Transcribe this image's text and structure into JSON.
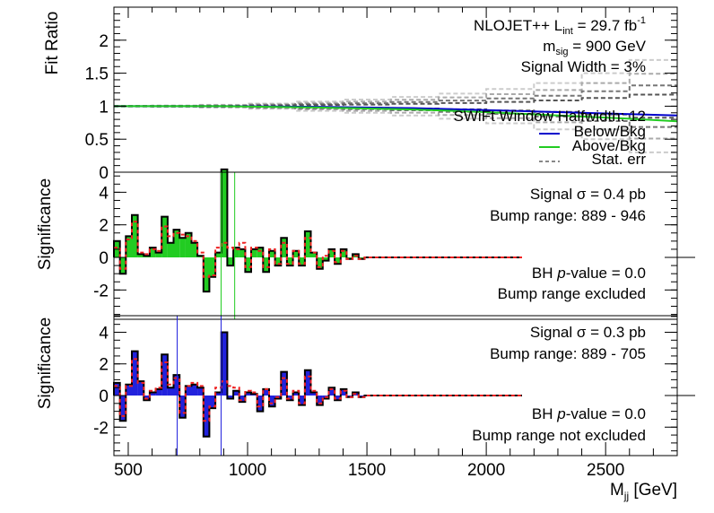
{
  "figure": {
    "x_axis_label_main": "M",
    "x_axis_label_sub": "jj",
    "x_axis_label_unit": " [GeV]"
  },
  "chart_data": [
    {
      "type": "line",
      "panel": "fit-ratio",
      "ylabel": "Fit Ratio",
      "xlim": [
        440,
        2800
      ],
      "ylim": [
        0,
        2.5
      ],
      "x_ticks": [
        "500",
        "1000",
        "1500",
        "2000",
        "2500"
      ],
      "y_ticks": [
        "0",
        "0.5",
        "1",
        "1.5",
        "2"
      ],
      "annotations": {
        "generator": "NLOJET++",
        "lumi_prefix": "L",
        "lumi_sub": "int",
        "lumi_value": " = 29.7 fb",
        "lumi_sup": "-1",
        "mass_prefix": "m",
        "mass_sub": "sig",
        "mass_value": " = 900 GeV",
        "signal_width": "Signal Width = 3%",
        "window": "SWiFt Window Halfwidth: 12"
      },
      "legend": [
        {
          "label": "Below/Bkg",
          "color": "#0000cc"
        },
        {
          "label": "Above/Bkg",
          "color": "#22cc22"
        },
        {
          "label": "Stat. err",
          "color": "#888888"
        }
      ],
      "series": [
        {
          "name": "Below/Bkg",
          "x": [
            440,
            900,
            1300,
            1700,
            2000,
            2300,
            2600,
            2800
          ],
          "y": [
            1.0,
            1.0,
            0.99,
            0.97,
            0.94,
            0.91,
            0.88,
            0.86
          ]
        },
        {
          "name": "Above/Bkg",
          "x": [
            440,
            900,
            1300,
            1700,
            2000,
            2300,
            2600,
            2800
          ],
          "y": [
            1.0,
            1.0,
            0.98,
            0.95,
            0.91,
            0.86,
            0.81,
            0.77
          ]
        }
      ],
      "stat_err": {
        "x": [
          440,
          600,
          800,
          1000,
          1200,
          1400,
          1600,
          1800,
          2000,
          2200,
          2400,
          2600,
          2800
        ],
        "half_width": [
          0.005,
          0.01,
          0.02,
          0.04,
          0.07,
          0.1,
          0.14,
          0.19,
          0.26,
          0.35,
          0.5,
          0.7,
          1.0
        ]
      }
    },
    {
      "type": "bar",
      "panel": "significance-above",
      "ylabel": "Significance",
      "xlim": [
        440,
        2800
      ],
      "ylim": [
        -3.8,
        5.5
      ],
      "y_ticks": [
        "4",
        "2",
        "0",
        "-2"
      ],
      "fill_color": "#22cc22",
      "annotations": {
        "signal_xsec": "Signal σ = 0.4 pb",
        "bump_range": "Bump range: 889 - 946",
        "bh_prefix": "BH ",
        "bh_italic": "p",
        "bh_suffix": "-value = 0.0",
        "bump_status": "Bump range excluded"
      },
      "bump_lines": [
        889,
        946
      ],
      "bin_edges": [
        440,
        465,
        490,
        515,
        540,
        565,
        590,
        615,
        640,
        665,
        690,
        715,
        740,
        765,
        790,
        815,
        840,
        865,
        890,
        915,
        940,
        965,
        990,
        1015,
        1040,
        1065,
        1090,
        1115,
        1140,
        1165,
        1190,
        1215,
        1240,
        1265,
        1290,
        1315,
        1340,
        1365,
        1390,
        1415,
        1440,
        1465,
        1490,
        1515,
        2150
      ],
      "values": [
        1.0,
        -1.0,
        1.3,
        2.6,
        0.2,
        0.1,
        0.6,
        0.3,
        2.5,
        0.9,
        1.7,
        1.2,
        1.5,
        0.9,
        0.1,
        -2.1,
        -1.2,
        0.3,
        5.4,
        -0.5,
        0.6,
        0.5,
        -0.9,
        0.5,
        0.6,
        -0.9,
        0.4,
        -0.5,
        1.2,
        -0.5,
        0.4,
        -0.5,
        1.6,
        0.3,
        -0.7,
        -0.2,
        0.5,
        -0.4,
        0.5,
        -0.1,
        0.2,
        -0.1,
        0.0,
        0.0
      ],
      "expected": [
        0.6,
        -0.7,
        1.1,
        2.2,
        0.3,
        0.2,
        0.5,
        0.4,
        1.9,
        1.3,
        1.5,
        1.4,
        1.3,
        1.0,
        0.3,
        -1.2,
        -1.1,
        0.6,
        0.9,
        0.6,
        0.5,
        0.9,
        -0.6,
        0.6,
        0.4,
        -0.6,
        0.5,
        -0.4,
        0.9,
        -0.4,
        0.4,
        -0.4,
        1.2,
        0.3,
        -0.6,
        0.1,
        0.4,
        -0.3,
        0.4,
        -0.1,
        0.1,
        -0.1,
        0.0,
        0.0
      ]
    },
    {
      "type": "bar",
      "panel": "significance-below",
      "ylabel": "Significance",
      "xlim": [
        440,
        2800
      ],
      "ylim": [
        -3.8,
        5.5
      ],
      "y_ticks": [
        "4",
        "2",
        "0",
        "-2"
      ],
      "fill_color": "#2222dd",
      "annotations": {
        "signal_xsec": "Signal σ = 0.3 pb",
        "bump_range": "Bump range: 889 - 705",
        "bh_prefix": "BH ",
        "bh_italic": "p",
        "bh_suffix": "-value = 0.0",
        "bump_status": "Bump range not excluded"
      },
      "bump_lines": [
        705,
        889
      ],
      "bin_edges": [
        440,
        465,
        490,
        515,
        540,
        565,
        590,
        615,
        640,
        665,
        690,
        715,
        740,
        765,
        790,
        815,
        840,
        865,
        890,
        915,
        940,
        965,
        990,
        1015,
        1040,
        1065,
        1090,
        1115,
        1140,
        1165,
        1190,
        1215,
        1240,
        1265,
        1290,
        1315,
        1340,
        1365,
        1390,
        1415,
        1440,
        1465,
        1490,
        1515,
        2150
      ],
      "values": [
        0.8,
        -1.6,
        0.7,
        2.8,
        0.9,
        -0.3,
        0.2,
        0.4,
        2.6,
        0.5,
        1.3,
        -1.4,
        0.6,
        0.7,
        0.5,
        -2.6,
        -0.8,
        0.2,
        4.0,
        -0.2,
        0.3,
        -0.4,
        0.2,
        0.1,
        -1.0,
        0.4,
        -0.7,
        -0.2,
        1.5,
        -0.3,
        0.2,
        -0.6,
        1.6,
        0.2,
        -0.6,
        -0.2,
        0.5,
        -0.3,
        0.4,
        -0.1,
        0.2,
        -0.1,
        0.0,
        0.0
      ],
      "expected": [
        0.6,
        -1.3,
        0.6,
        2.3,
        0.8,
        -0.2,
        0.3,
        0.5,
        2.1,
        0.7,
        1.1,
        -1.1,
        0.6,
        0.8,
        0.6,
        -1.6,
        -0.7,
        0.5,
        0.9,
        0.6,
        0.5,
        -0.3,
        0.3,
        0.2,
        -0.7,
        0.4,
        -0.5,
        -0.1,
        1.1,
        -0.2,
        0.3,
        -0.5,
        1.2,
        0.3,
        -0.5,
        -0.1,
        0.4,
        -0.2,
        0.3,
        -0.1,
        0.1,
        -0.1,
        0.0,
        0.0
      ]
    }
  ]
}
